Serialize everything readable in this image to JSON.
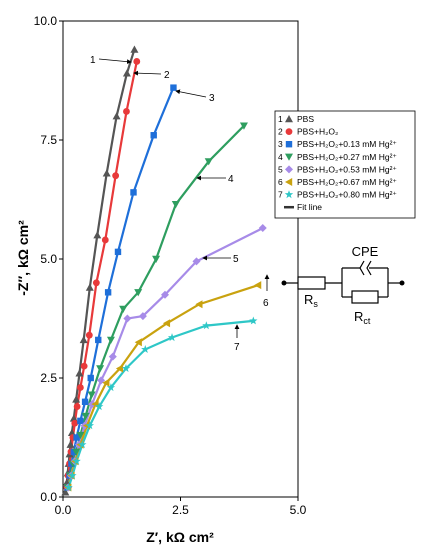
{
  "chart_data": {
    "type": "scatter",
    "xlabel": "Z′, kΩ cm²",
    "ylabel": "-Z″, kΩ cm²",
    "xlim": [
      0,
      5
    ],
    "ylim": [
      0,
      10
    ],
    "xticks": [
      "0.0",
      "2.5",
      "5.0"
    ],
    "yticks": [
      "0.0",
      "2.5",
      "5.0",
      "7.5",
      "10.0"
    ],
    "grid": false,
    "legend_position": "right",
    "series": [
      {
        "num": "1",
        "name": "PBS",
        "color": "#555555",
        "marker": "triangle-up",
        "x": [
          0.05,
          0.08,
          0.1,
          0.12,
          0.14,
          0.16,
          0.19,
          0.23,
          0.28,
          0.35,
          0.44,
          0.57,
          0.73,
          0.93,
          1.14,
          1.36,
          1.52
        ],
        "y": [
          0.1,
          0.3,
          0.5,
          0.7,
          0.9,
          1.1,
          1.35,
          1.65,
          2.05,
          2.6,
          3.3,
          4.4,
          5.5,
          6.8,
          8.0,
          8.9,
          9.4
        ]
      },
      {
        "num": "2",
        "name": "PBS+H₂O₂",
        "color": "#e8393a",
        "marker": "circle",
        "x": [
          0.08,
          0.11,
          0.14,
          0.17,
          0.21,
          0.25,
          0.3,
          0.37,
          0.45,
          0.56,
          0.71,
          0.9,
          1.12,
          1.35,
          1.57
        ],
        "y": [
          0.2,
          0.45,
          0.7,
          0.95,
          1.25,
          1.55,
          1.9,
          2.3,
          2.75,
          3.4,
          4.5,
          5.4,
          6.75,
          8.1,
          9.15
        ]
      },
      {
        "num": "3",
        "name": "PBS+H₂O₂+0.13 mM Hg²⁺",
        "color": "#1e6fd9",
        "marker": "square",
        "x": [
          0.1,
          0.14,
          0.18,
          0.23,
          0.29,
          0.37,
          0.47,
          0.59,
          0.75,
          0.96,
          1.17,
          1.5,
          1.93,
          2.35
        ],
        "y": [
          0.2,
          0.45,
          0.7,
          0.95,
          1.25,
          1.6,
          2.0,
          2.5,
          3.3,
          4.3,
          5.15,
          6.4,
          7.6,
          8.6
        ]
      },
      {
        "num": "4",
        "name": "PBS+H₂O₂+0.27 mM Hg²⁺",
        "color": "#2e9e5f",
        "marker": "triangle-down",
        "x": [
          0.1,
          0.15,
          0.21,
          0.28,
          0.37,
          0.48,
          0.61,
          0.79,
          1.02,
          1.28,
          1.6,
          1.98,
          2.4,
          3.1,
          3.85
        ],
        "y": [
          0.2,
          0.45,
          0.7,
          0.95,
          1.3,
          1.7,
          2.15,
          2.7,
          3.3,
          3.95,
          4.3,
          5.0,
          6.15,
          7.05,
          7.8
        ]
      },
      {
        "num": "5",
        "name": "PBS+H₂O₂+0.53 mM Hg²⁺",
        "color": "#a78be8",
        "marker": "diamond",
        "x": [
          0.11,
          0.17,
          0.25,
          0.34,
          0.46,
          0.62,
          0.81,
          1.06,
          1.37,
          1.7,
          2.17,
          2.84,
          4.25
        ],
        "y": [
          0.2,
          0.45,
          0.75,
          1.1,
          1.5,
          1.95,
          2.45,
          2.95,
          3.75,
          3.8,
          4.25,
          4.95,
          5.65
        ]
      },
      {
        "num": "6",
        "name": "PBS+H₂O₂+0.67 mM Hg²⁺",
        "color": "#c9a20f",
        "marker": "triangle-left",
        "x": [
          0.11,
          0.18,
          0.26,
          0.37,
          0.51,
          0.69,
          0.92,
          1.21,
          1.61,
          2.21,
          2.9,
          4.15
        ],
        "y": [
          0.2,
          0.45,
          0.75,
          1.1,
          1.5,
          1.95,
          2.4,
          2.7,
          3.25,
          3.65,
          4.05,
          4.45
        ]
      },
      {
        "num": "7",
        "name": "PBS+H₂O₂+0.80 mM Hg²⁺",
        "color": "#2ec7c7",
        "marker": "star",
        "x": [
          0.12,
          0.2,
          0.29,
          0.41,
          0.57,
          0.77,
          1.02,
          1.34,
          1.75,
          2.32,
          3.05,
          4.05
        ],
        "y": [
          0.2,
          0.45,
          0.75,
          1.1,
          1.5,
          1.9,
          2.3,
          2.7,
          3.1,
          3.35,
          3.6,
          3.7
        ]
      }
    ],
    "fit_legend": {
      "num": "",
      "name": "Fit line",
      "color": "#333333"
    },
    "circuit": {
      "element_cpe": "CPE",
      "element_rs": "R",
      "rs_sub": "s",
      "element_rct": "R",
      "rct_sub": "ct"
    }
  }
}
